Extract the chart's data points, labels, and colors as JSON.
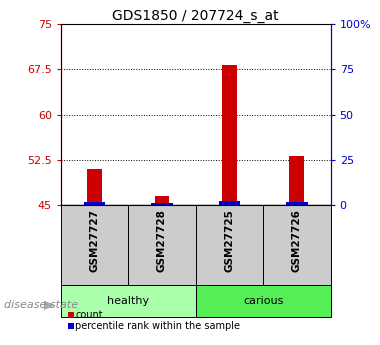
{
  "title": "GDS1850 / 207724_s_at",
  "samples": [
    "GSM27727",
    "GSM27728",
    "GSM27725",
    "GSM27726"
  ],
  "count_values": [
    51.0,
    46.5,
    68.2,
    53.2
  ],
  "percentile_values": [
    0.6,
    0.4,
    0.7,
    0.5
  ],
  "ylim_left": [
    45,
    75
  ],
  "ylim_right": [
    0,
    100
  ],
  "left_ticks": [
    45,
    52.5,
    60,
    67.5,
    75
  ],
  "right_ticks": [
    0,
    25,
    50,
    75,
    100
  ],
  "right_tick_labels": [
    "0",
    "25",
    "50",
    "75",
    "100%"
  ],
  "left_tick_color": "#cc0000",
  "right_tick_color": "#0000cc",
  "bar_color_count": "#cc0000",
  "bar_color_percentile": "#0000cc",
  "group_labels": [
    {
      "label": "healthy",
      "indices": [
        0,
        1
      ],
      "color": "#aaffaa"
    },
    {
      "label": "carious",
      "indices": [
        2,
        3
      ],
      "color": "#55ee55"
    }
  ],
  "disease_state_label": "disease state",
  "legend_items": [
    {
      "label": "count",
      "color": "#cc0000"
    },
    {
      "label": "percentile rank within the sample",
      "color": "#0000cc"
    }
  ],
  "sample_box_color": "#cccccc",
  "base_value": 45,
  "pct_bar_height": 0.8
}
